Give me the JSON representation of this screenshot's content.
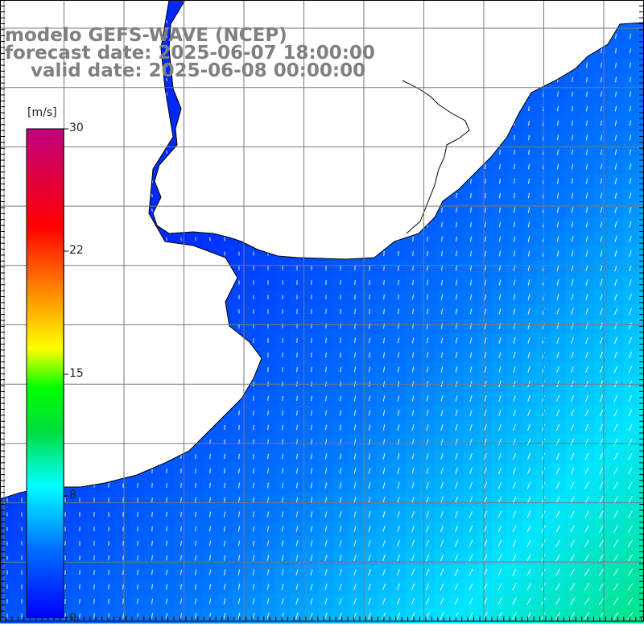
{
  "title": {
    "line1": "modelo GEFS-WAVE (NCEP)",
    "line2": "forecast date: 2025-06-07 18:00:00",
    "line3": "    valid date: 2025-06-08 00:00:00"
  },
  "colorbar": {
    "unit": "[m/s]",
    "ticks": [
      "30",
      "22",
      "15",
      "8",
      "0"
    ],
    "tick_values": [
      30,
      22,
      15,
      8,
      0
    ],
    "range": [
      0,
      30
    ],
    "colors": [
      "#0000ff",
      "#0080ff",
      "#00ffff",
      "#00ff00",
      "#ffff00",
      "#ff8000",
      "#ff0000",
      "#d000a0"
    ]
  },
  "map": {
    "field": "wind speed and direction",
    "land_color": "#ffffff",
    "grid_color": "#808080",
    "vector_color": "#ffffff"
  }
}
